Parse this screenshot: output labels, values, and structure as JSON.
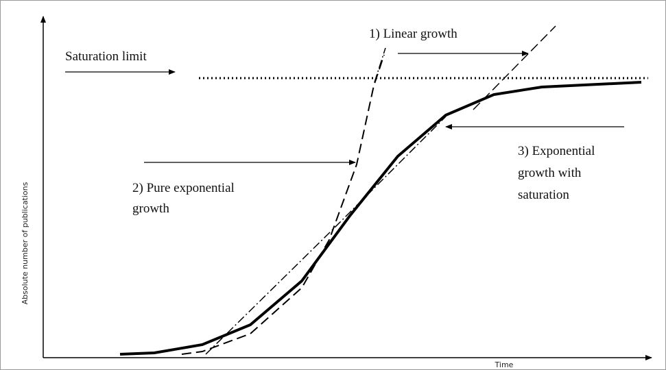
{
  "axes": {
    "y_label": "Absolute number of publications",
    "x_label": "Time"
  },
  "annotations": [
    {
      "lines": [
        "Saturation limit"
      ]
    },
    {
      "lines": [
        "1) Linear growth"
      ]
    },
    {
      "lines": [
        "2) Pure exponential",
        "growth"
      ]
    },
    {
      "lines": [
        "3) Exponential",
        "growth with",
        "saturation"
      ]
    }
  ]
}
